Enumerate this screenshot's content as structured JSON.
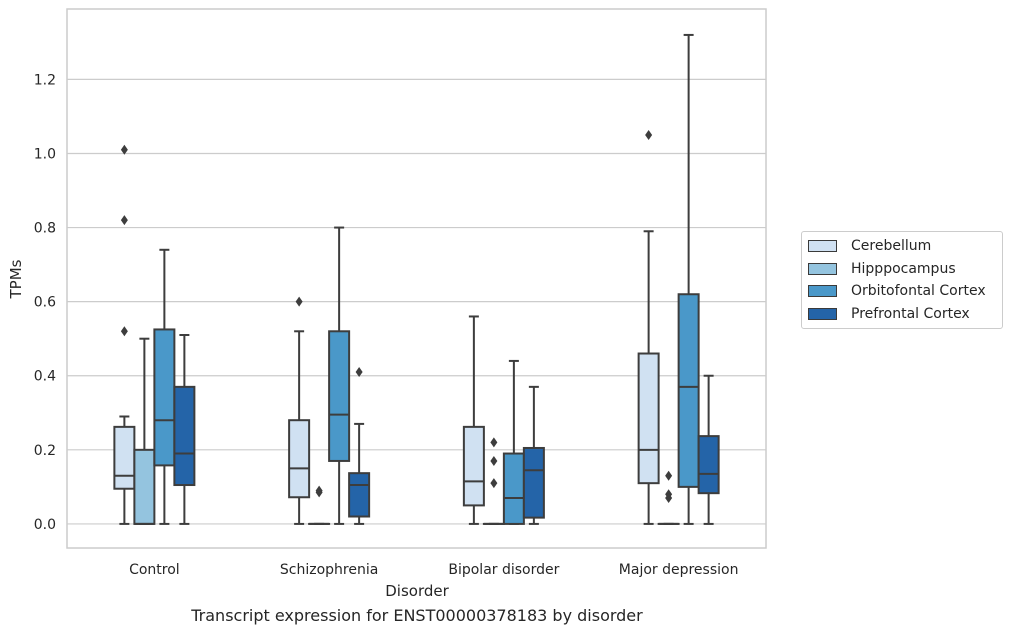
{
  "chart_data": {
    "type": "box",
    "caption": "Transcript expression for ENST00000378183 by disorder",
    "xlabel": "Disorder",
    "ylabel": "TPMs",
    "ylim": [
      -0.065,
      1.39
    ],
    "yticks": [
      0.0,
      0.2,
      0.4,
      0.6,
      0.8,
      1.0,
      1.2
    ],
    "ytick_labels": [
      "0.0",
      "0.2",
      "0.4",
      "0.6",
      "0.8",
      "1.0",
      "1.2"
    ],
    "grid": true,
    "legend_position": "right",
    "categories": [
      "Control",
      "Schizophrenia",
      "Bipolar disorder",
      "Major depression"
    ],
    "series": [
      {
        "name": "Cerebellum",
        "color": "#d0e1f2",
        "boxes": [
          {
            "whisker_low": 0.0,
            "q1": 0.095,
            "median": 0.13,
            "q3": 0.262,
            "whisker_high": 0.29,
            "outliers": [
              0.52,
              0.82,
              1.01
            ]
          },
          {
            "whisker_low": 0.0,
            "q1": 0.072,
            "median": 0.15,
            "q3": 0.28,
            "whisker_high": 0.52,
            "outliers": [
              0.6
            ]
          },
          {
            "whisker_low": 0.0,
            "q1": 0.05,
            "median": 0.115,
            "q3": 0.262,
            "whisker_high": 0.56,
            "outliers": []
          },
          {
            "whisker_low": 0.0,
            "q1": 0.11,
            "median": 0.2,
            "q3": 0.46,
            "whisker_high": 0.79,
            "outliers": [
              1.05
            ]
          }
        ]
      },
      {
        "name": "Hipppocampus",
        "color": "#94c4df",
        "boxes": [
          {
            "whisker_low": 0.0,
            "q1": 0.0,
            "median": 0.0,
            "q3": 0.2,
            "whisker_high": 0.5,
            "outliers": []
          },
          {
            "whisker_low": 0.0,
            "q1": 0.0,
            "median": 0.0,
            "q3": 0.0,
            "whisker_high": 0.0,
            "outliers": [
              0.085,
              0.09
            ]
          },
          {
            "whisker_low": 0.0,
            "q1": 0.0,
            "median": 0.0,
            "q3": 0.0,
            "whisker_high": 0.0,
            "outliers": [
              0.11,
              0.17,
              0.22
            ]
          },
          {
            "whisker_low": 0.0,
            "q1": 0.0,
            "median": 0.0,
            "q3": 0.0,
            "whisker_high": 0.0,
            "outliers": [
              0.07,
              0.08,
              0.13
            ]
          }
        ]
      },
      {
        "name": "Orbitofontal Cortex",
        "color": "#4a98c9",
        "boxes": [
          {
            "whisker_low": 0.0,
            "q1": 0.158,
            "median": 0.28,
            "q3": 0.525,
            "whisker_high": 0.74,
            "outliers": []
          },
          {
            "whisker_low": 0.0,
            "q1": 0.17,
            "median": 0.295,
            "q3": 0.52,
            "whisker_high": 0.8,
            "outliers": []
          },
          {
            "whisker_low": 0.0,
            "q1": 0.0,
            "median": 0.07,
            "q3": 0.19,
            "whisker_high": 0.44,
            "outliers": []
          },
          {
            "whisker_low": 0.0,
            "q1": 0.1,
            "median": 0.37,
            "q3": 0.62,
            "whisker_high": 1.32,
            "outliers": []
          }
        ]
      },
      {
        "name": "Prefrontal Cortex",
        "color": "#2464a8",
        "boxes": [
          {
            "whisker_low": 0.0,
            "q1": 0.105,
            "median": 0.19,
            "q3": 0.37,
            "whisker_high": 0.51,
            "outliers": []
          },
          {
            "whisker_low": 0.0,
            "q1": 0.02,
            "median": 0.105,
            "q3": 0.137,
            "whisker_high": 0.27,
            "outliers": [
              0.41
            ]
          },
          {
            "whisker_low": 0.0,
            "q1": 0.017,
            "median": 0.145,
            "q3": 0.205,
            "whisker_high": 0.37,
            "outliers": []
          },
          {
            "whisker_low": 0.0,
            "q1": 0.083,
            "median": 0.135,
            "q3": 0.237,
            "whisker_high": 0.4,
            "outliers": []
          }
        ]
      }
    ]
  }
}
